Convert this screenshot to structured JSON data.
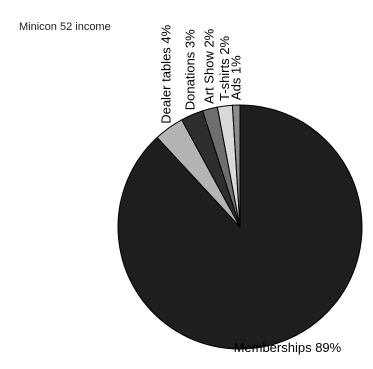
{
  "chart_data": {
    "type": "pie",
    "title": "Minicon 52 income",
    "start_angle_deg": 90,
    "direction": "clockwise",
    "slices": [
      {
        "label": "Memberships 89%",
        "value": 89,
        "color": "#1e1e1e",
        "label_orientation": "horizontal"
      },
      {
        "label": "Dealer tables 4%",
        "value": 4,
        "color": "#b4b4b4",
        "label_orientation": "vertical"
      },
      {
        "label": "Donations 3%",
        "value": 3,
        "color": "#2e2e2e",
        "label_orientation": "vertical"
      },
      {
        "label": "Art Show 2%",
        "value": 2,
        "color": "#6e6e6e",
        "label_orientation": "vertical"
      },
      {
        "label": "T-shirts 2%",
        "value": 2,
        "color": "#d9d9d9",
        "label_orientation": "vertical"
      },
      {
        "label": "Ads 1%",
        "value": 1,
        "color": "#8c8c8c",
        "label_orientation": "vertical"
      }
    ]
  }
}
